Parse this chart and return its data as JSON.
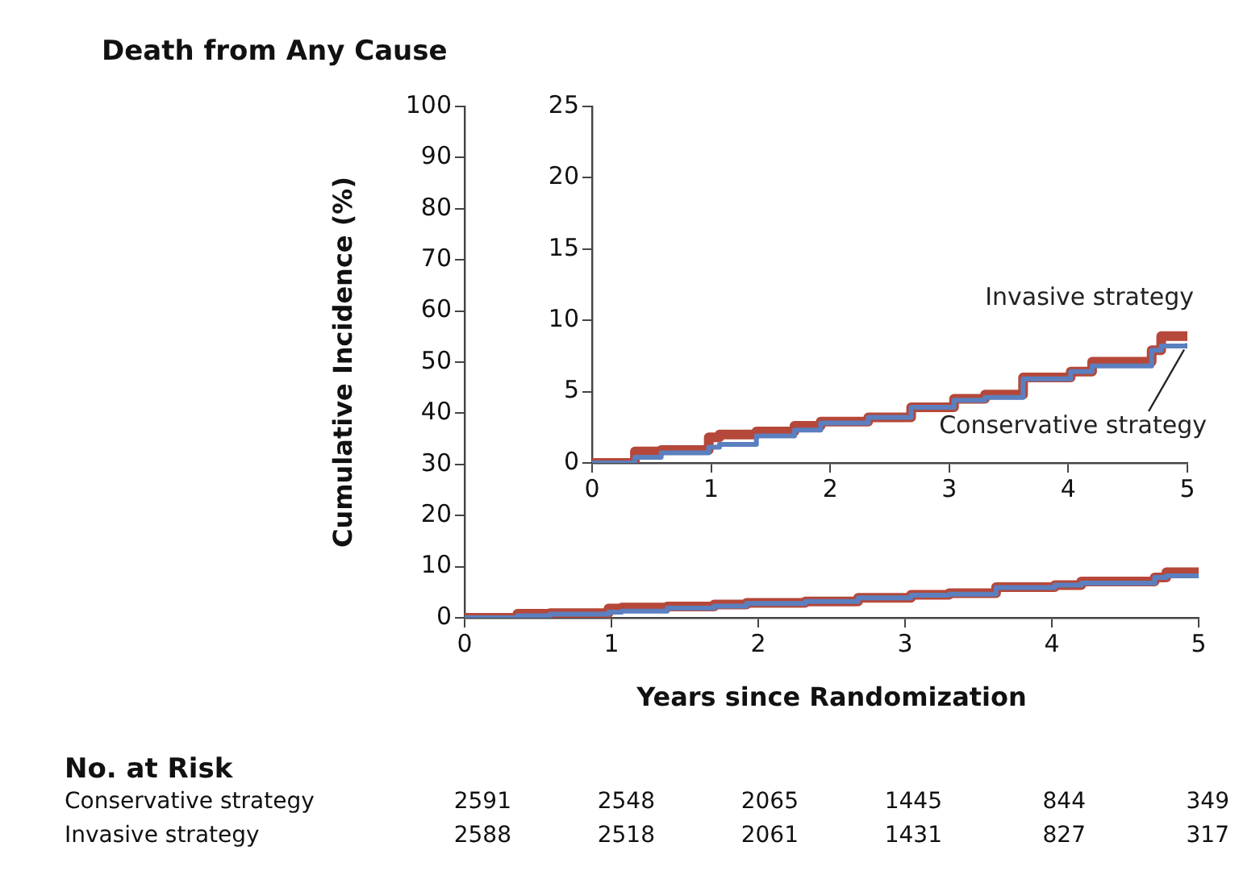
{
  "chart_data": [
    {
      "type": "step",
      "title": "Death from Any Cause",
      "xlabel": "Years since Randomization",
      "ylabel": "Cumulative Incidence (%)",
      "xlim": [
        0,
        5
      ],
      "xticks": [
        0,
        1,
        2,
        3,
        4,
        5
      ],
      "ylim": [
        0,
        100
      ],
      "yticks": [
        0,
        10,
        20,
        30,
        40,
        50,
        60,
        70,
        80,
        90,
        100
      ],
      "x": [
        0,
        0.36,
        0.58,
        0.98,
        1.07,
        1.38,
        1.7,
        1.92,
        2.32,
        2.68,
        3.04,
        3.3,
        3.62,
        4.02,
        4.2,
        4.7,
        4.78,
        5.0
      ],
      "series": [
        {
          "color": "#5b7fbf",
          "values": [
            0,
            0.4,
            0.7,
            1.1,
            1.3,
            1.9,
            2.3,
            2.8,
            3.2,
            3.9,
            4.4,
            4.6,
            5.9,
            6.4,
            6.8,
            7.9,
            8.2,
            8.4
          ]
        },
        {
          "color": "#b5483a",
          "values": [
            0,
            0.8,
            0.9,
            1.8,
            2.0,
            2.2,
            2.6,
            2.9,
            3.2,
            3.9,
            4.5,
            4.8,
            6.0,
            6.4,
            7.1,
            7.9,
            8.9,
            9.1
          ]
        }
      ],
      "annotations": [
        "No. at Risk",
        "Conservative strategy",
        "2591",
        "2548",
        "2065",
        "1445",
        "844",
        "349",
        "Invasive strategy",
        "2588",
        "2518",
        "2061",
        "1431",
        "827",
        "317"
      ]
    },
    {
      "type": "step",
      "xlim": [
        0,
        5
      ],
      "xticks": [
        0,
        1,
        2,
        3,
        4,
        5
      ],
      "ylim": [
        0,
        25
      ],
      "yticks": [
        0,
        5,
        10,
        15,
        20,
        25
      ],
      "x": [
        0,
        0.36,
        0.58,
        0.98,
        1.07,
        1.38,
        1.7,
        1.92,
        2.32,
        2.68,
        3.04,
        3.3,
        3.62,
        4.02,
        4.2,
        4.7,
        4.78,
        5.0
      ],
      "series": [
        {
          "name": "Conservative strategy",
          "color": "#5b7fbf",
          "values": [
            0,
            0.4,
            0.7,
            1.1,
            1.3,
            1.9,
            2.3,
            2.8,
            3.2,
            3.9,
            4.4,
            4.6,
            5.9,
            6.4,
            6.8,
            7.9,
            8.2,
            8.4
          ]
        },
        {
          "name": "Invasive strategy",
          "color": "#b5483a",
          "values": [
            0,
            0.8,
            0.9,
            1.8,
            2.0,
            2.2,
            2.6,
            2.9,
            3.2,
            3.9,
            4.5,
            4.8,
            6.0,
            6.4,
            7.1,
            7.9,
            8.9,
            9.1
          ]
        }
      ]
    }
  ]
}
